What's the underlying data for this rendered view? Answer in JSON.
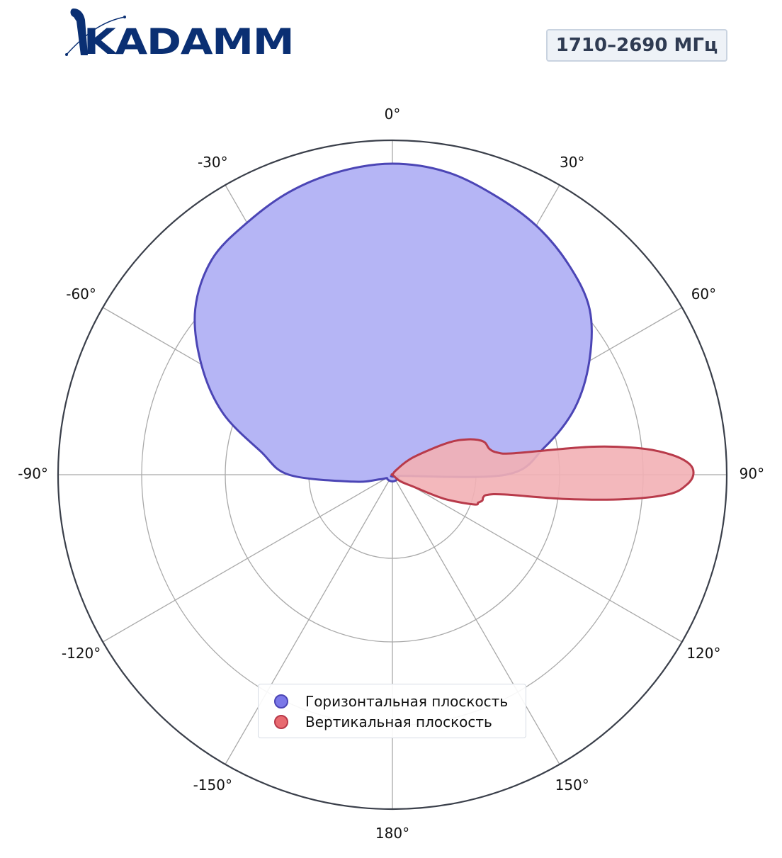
{
  "header": {
    "logo_text": "KADAMM",
    "frequency_label": "1710–2690 МГц"
  },
  "colors": {
    "horizontal_fill": "#b5b5f5",
    "horizontal_stroke": "#4b45b5",
    "vertical_fill": "#f2b0b5",
    "vertical_stroke": "#b83a4a",
    "grid": "#a9a9a9",
    "outer_ring": "#3a3f4a",
    "logo": "#0a2f73"
  },
  "legend": {
    "items": [
      {
        "label": "Горизонтальная плоскость",
        "color": "#7b78e8",
        "border": "#4b45b5"
      },
      {
        "label": "Вертикальная плоскость",
        "color": "#e86a70",
        "border": "#b83a4a"
      }
    ]
  },
  "chart_data": {
    "type": "polar",
    "angle_ticks": [
      "0°",
      "30°",
      "60°",
      "90°",
      "120°",
      "150°",
      "180°",
      "-150°",
      "-120°",
      "-90°",
      "-60°",
      "-30°"
    ],
    "radial_range": [
      0,
      1
    ],
    "radial_grid": [
      0.25,
      0.5,
      0.75,
      1.0
    ],
    "radial_tick_labels": [],
    "grid": true,
    "legend_position": "bottom-center",
    "series": [
      {
        "name": "Горизонтальная плоскость",
        "theta": [
          -90,
          -80,
          -70,
          -60,
          -50,
          -40,
          -30,
          -20,
          -10,
          0,
          10,
          20,
          30,
          40,
          50,
          60,
          70,
          80,
          90,
          100,
          110,
          120,
          130,
          140,
          150,
          160,
          170,
          180,
          190,
          200,
          210,
          220,
          230,
          240,
          250,
          260,
          270
        ],
        "r": [
          0.31,
          0.4,
          0.54,
          0.66,
          0.77,
          0.84,
          0.87,
          0.9,
          0.92,
          0.93,
          0.92,
          0.89,
          0.86,
          0.82,
          0.77,
          0.68,
          0.58,
          0.46,
          0.34,
          0.02,
          0.02,
          0.02,
          0.02,
          0.02,
          0.02,
          0.02,
          0.02,
          0.02,
          0.02,
          0.02,
          0.02,
          0.02,
          0.02,
          0.02,
          0.04,
          0.12,
          0.31
        ]
      },
      {
        "name": "Вертикальная плоскость",
        "theta": [
          40,
          50,
          60,
          65,
          70,
          75,
          78,
          80,
          82,
          84,
          86,
          88,
          90,
          92,
          94,
          96,
          98,
          100,
          102,
          104,
          106,
          108,
          110,
          115,
          120,
          130,
          140
        ],
        "r": [
          0.02,
          0.08,
          0.19,
          0.25,
          0.29,
          0.3,
          0.32,
          0.37,
          0.6,
          0.75,
          0.84,
          0.89,
          0.9,
          0.88,
          0.83,
          0.7,
          0.52,
          0.34,
          0.29,
          0.28,
          0.28,
          0.27,
          0.26,
          0.17,
          0.07,
          0.03,
          0.0
        ]
      }
    ]
  }
}
